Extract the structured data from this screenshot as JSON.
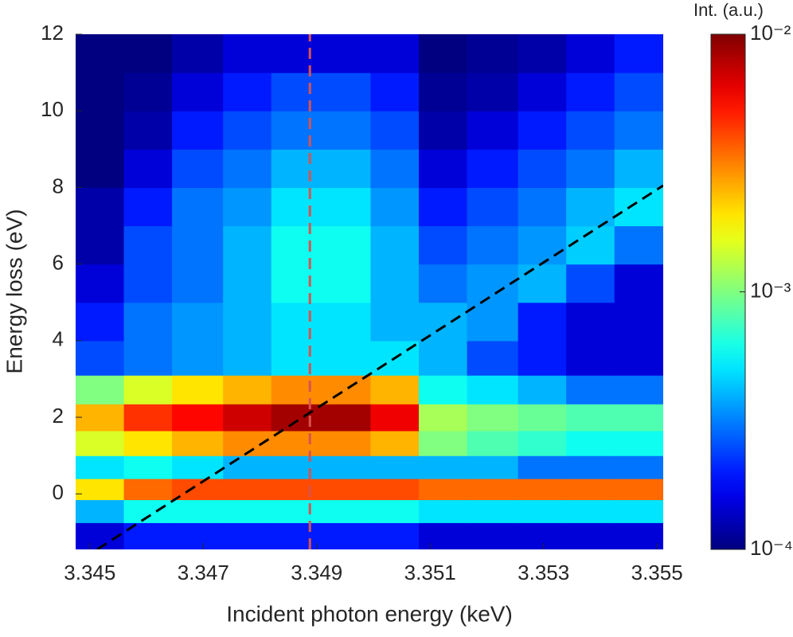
{
  "chart_data": {
    "type": "heatmap",
    "xlabel": "Incident photon energy (keV)",
    "ylabel": "Energy loss (eV)",
    "colorbar_label": "Int. (a.u.)",
    "color_scale": "log",
    "colormap": "jet",
    "xlim": [
      3.34475,
      3.35511
    ],
    "ylim": [
      -1.45,
      12
    ],
    "xticks": [
      3.345,
      3.347,
      3.349,
      3.351,
      3.353,
      3.355
    ],
    "yticks": [
      0,
      2,
      4,
      6,
      8,
      10,
      12
    ],
    "clim": [
      0.0001,
      0.01
    ],
    "cticks": [
      {
        "value": 0.0001,
        "label": "10⁻⁴"
      },
      {
        "value": 0.001,
        "label": "10⁻³"
      },
      {
        "value": 0.01,
        "label": "10⁻²"
      }
    ],
    "x": [
      3.3452,
      3.346,
      3.3469,
      3.3478,
      3.3486,
      3.3495,
      3.3504,
      3.3512,
      3.3521,
      3.353,
      3.3538,
      3.3547
    ],
    "y": [
      -1.1,
      -0.4,
      0.1,
      0.7,
      1.3,
      2.0,
      2.7,
      3.5,
      4.5,
      5.5,
      6.5,
      7.5,
      8.5,
      9.5,
      10.5,
      11.5
    ],
    "z": [
      [
        0.00015,
        0.0002,
        0.0002,
        0.0002,
        0.0002,
        0.0002,
        0.0002,
        0.00015,
        0.00015,
        0.00015,
        0.00015,
        0.00015
      ],
      [
        0.0004,
        0.0006,
        0.0006,
        0.0006,
        0.0006,
        0.0006,
        0.0006,
        0.0005,
        0.0005,
        0.0005,
        0.0005,
        0.0005
      ],
      [
        0.002,
        0.0035,
        0.004,
        0.004,
        0.004,
        0.004,
        0.004,
        0.0035,
        0.0035,
        0.0035,
        0.0035,
        0.0035
      ],
      [
        0.0005,
        0.0006,
        0.0005,
        0.0004,
        0.0004,
        0.0004,
        0.0004,
        0.0004,
        0.0004,
        0.0003,
        0.0003,
        0.0003
      ],
      [
        0.0015,
        0.002,
        0.0025,
        0.003,
        0.003,
        0.003,
        0.0025,
        0.001,
        0.0008,
        0.0007,
        0.0006,
        0.0006
      ],
      [
        0.0025,
        0.0045,
        0.0055,
        0.007,
        0.0085,
        0.0085,
        0.006,
        0.0012,
        0.001,
        0.0009,
        0.0008,
        0.0008
      ],
      [
        0.001,
        0.0015,
        0.002,
        0.0025,
        0.003,
        0.003,
        0.0025,
        0.0006,
        0.0005,
        0.0004,
        0.0003,
        0.0003
      ],
      [
        0.00025,
        0.0003,
        0.00035,
        0.0004,
        0.0005,
        0.0005,
        0.0005,
        0.0004,
        0.00025,
        0.0002,
        0.00015,
        0.00015
      ],
      [
        0.0002,
        0.0003,
        0.00035,
        0.0004,
        0.0005,
        0.0005,
        0.0004,
        0.0004,
        0.00035,
        0.0002,
        0.00015,
        0.00015
      ],
      [
        0.00015,
        0.00025,
        0.0003,
        0.0004,
        0.0006,
        0.0006,
        0.0004,
        0.0003,
        0.00035,
        0.0004,
        0.00025,
        0.00015
      ],
      [
        0.00012,
        0.00025,
        0.0003,
        0.0004,
        0.0006,
        0.0006,
        0.0004,
        0.00025,
        0.0003,
        0.00035,
        0.00045,
        0.0003
      ],
      [
        0.00012,
        0.0002,
        0.0003,
        0.00035,
        0.0005,
        0.0005,
        0.00035,
        0.0002,
        0.00025,
        0.0003,
        0.0004,
        0.0005
      ],
      [
        0.0001,
        0.00015,
        0.00025,
        0.0003,
        0.0004,
        0.0004,
        0.0003,
        0.00015,
        0.0002,
        0.00025,
        0.0003,
        0.0004
      ],
      [
        0.0001,
        0.00012,
        0.0002,
        0.00025,
        0.0003,
        0.0003,
        0.00025,
        0.00012,
        0.00015,
        0.0002,
        0.00025,
        0.0003
      ],
      [
        0.0001,
        0.00011,
        0.00015,
        0.0002,
        0.00025,
        0.00025,
        0.0002,
        0.00011,
        0.00012,
        0.00015,
        0.0002,
        0.00025
      ],
      [
        0.0001,
        0.0001,
        0.00012,
        0.00015,
        0.00015,
        0.00015,
        0.00015,
        0.0001,
        0.00011,
        0.00012,
        0.00015,
        0.0002
      ]
    ],
    "lines": [
      {
        "x": [
          3.34888,
          3.34888
        ],
        "y": [
          -1.45,
          12
        ],
        "color": "#d9534f",
        "dashed": true
      },
      {
        "x": [
          3.34513,
          3.35511
        ],
        "y": [
          -1.45,
          8.05
        ],
        "color": "#000000",
        "dashed": true
      }
    ]
  }
}
